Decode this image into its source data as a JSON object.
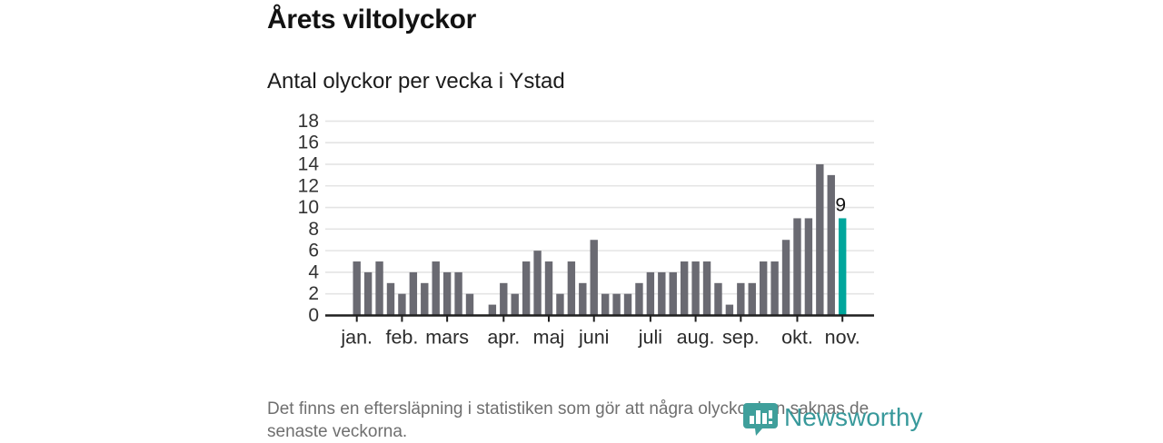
{
  "title": "Årets viltolyckor",
  "subtitle": "Antal olyckor per vecka i Ystad",
  "footer": {
    "line1": "Det finns en eftersläpning i statistiken som gör att några olyckor kan saknas de",
    "line2": "senaste veckorna."
  },
  "branding": {
    "name": "Newsworthy",
    "icon": "newsworthy-pin-barchart-icon",
    "color": "#38999b"
  },
  "chart_data": {
    "type": "bar",
    "title": "Årets viltolyckor",
    "subtitle": "Antal olyckor per vecka i Ystad",
    "x_unit": "vecka",
    "weeks": [
      1,
      2,
      3,
      4,
      5,
      6,
      7,
      8,
      9,
      10,
      11,
      12,
      13,
      14,
      15,
      16,
      17,
      18,
      19,
      20,
      21,
      22,
      23,
      24,
      25,
      26,
      27,
      28,
      29,
      30,
      31,
      32,
      33,
      34,
      35,
      36,
      37,
      38,
      39,
      40,
      41,
      42,
      43,
      44
    ],
    "values": [
      5,
      4,
      5,
      3,
      2,
      4,
      3,
      5,
      4,
      4,
      2,
      0,
      1,
      3,
      2,
      5,
      6,
      5,
      2,
      5,
      3,
      7,
      2,
      2,
      2,
      3,
      4,
      4,
      4,
      5,
      5,
      5,
      3,
      1,
      3,
      3,
      5,
      5,
      7,
      9,
      9,
      14,
      13,
      9
    ],
    "month_ticks": [
      {
        "week": 1,
        "label": "jan."
      },
      {
        "week": 5,
        "label": "feb."
      },
      {
        "week": 9,
        "label": "mars"
      },
      {
        "week": 14,
        "label": "apr."
      },
      {
        "week": 18,
        "label": "maj"
      },
      {
        "week": 22,
        "label": "juni"
      },
      {
        "week": 27,
        "label": "juli"
      },
      {
        "week": 31,
        "label": "aug."
      },
      {
        "week": 35,
        "label": "sep."
      },
      {
        "week": 40,
        "label": "okt."
      },
      {
        "week": 44,
        "label": "nov."
      }
    ],
    "yticks": [
      0,
      2,
      4,
      6,
      8,
      10,
      12,
      14,
      16,
      18
    ],
    "ylim": [
      0,
      18
    ],
    "grid": true,
    "legend_position": "none",
    "highlight_last_bar": true,
    "annotation": {
      "week": 44,
      "text": "9"
    },
    "colors": {
      "bar": "#6a6a72",
      "highlight": "#00a69c",
      "axis": "#1f1f1f",
      "gridline": "#e4e4e4",
      "tick_label": "#333333"
    }
  }
}
